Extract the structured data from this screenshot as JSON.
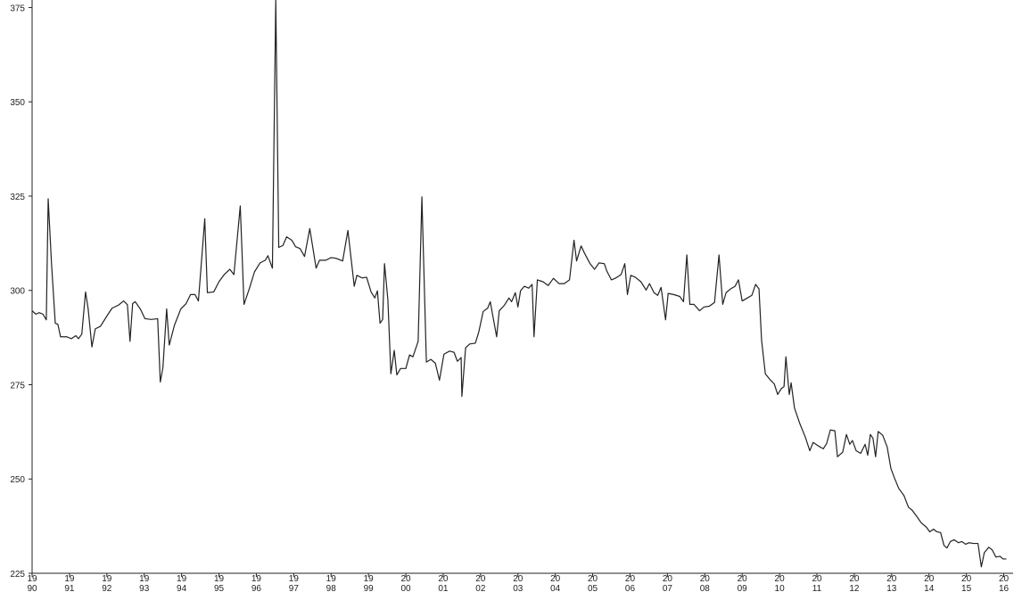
{
  "chart_data": {
    "type": "line",
    "color": "#222222",
    "grid": false,
    "xlim": [
      1990,
      2016.25
    ],
    "ylim": [
      225,
      377
    ],
    "xticks": [
      1990,
      1991,
      1992,
      1993,
      1994,
      1995,
      1996,
      1997,
      1998,
      1999,
      2000,
      2001,
      2002,
      2003,
      2004,
      2005,
      2006,
      2007,
      2008,
      2009,
      2010,
      2011,
      2012,
      2013,
      2014,
      2015,
      2016
    ],
    "yticks": [
      225,
      250,
      275,
      300,
      325,
      350,
      375
    ],
    "x": [
      1990.0,
      1990.1,
      1990.19,
      1990.29,
      1990.38,
      1990.43,
      1990.52,
      1990.62,
      1990.69,
      1990.76,
      1990.93,
      1991.05,
      1991.17,
      1991.24,
      1991.33,
      1991.43,
      1991.5,
      1991.6,
      1991.69,
      1991.83,
      1992.0,
      1992.14,
      1992.31,
      1992.45,
      1992.55,
      1992.62,
      1992.69,
      1992.76,
      1992.9,
      1993.02,
      1993.19,
      1993.36,
      1993.43,
      1993.5,
      1993.6,
      1993.67,
      1993.81,
      1993.98,
      1994.12,
      1994.24,
      1994.36,
      1994.45,
      1994.62,
      1994.69,
      1994.86,
      1995.0,
      1995.14,
      1995.29,
      1995.4,
      1995.57,
      1995.67,
      1995.81,
      1995.95,
      1996.1,
      1996.24,
      1996.31,
      1996.43,
      1996.52,
      1996.6,
      1996.71,
      1996.81,
      1996.95,
      1997.05,
      1997.17,
      1997.29,
      1997.43,
      1997.6,
      1997.69,
      1997.86,
      1998.0,
      1998.14,
      1998.31,
      1998.45,
      1998.62,
      1998.69,
      1998.83,
      1998.95,
      1999.07,
      1999.17,
      1999.24,
      1999.31,
      1999.38,
      1999.43,
      1999.52,
      1999.6,
      1999.69,
      1999.76,
      1999.86,
      2000.0,
      2000.1,
      2000.19,
      2000.33,
      2000.43,
      2000.55,
      2000.67,
      2000.79,
      2000.9,
      2001.02,
      2001.17,
      2001.29,
      2001.38,
      2001.48,
      2001.5,
      2001.6,
      2001.71,
      2001.86,
      2001.95,
      2002.07,
      2002.19,
      2002.26,
      2002.43,
      2002.5,
      2002.64,
      2002.76,
      2002.83,
      2002.93,
      2003.0,
      2003.07,
      2003.17,
      2003.29,
      2003.38,
      2003.43,
      2003.52,
      2003.67,
      2003.81,
      2003.95,
      2004.1,
      2004.24,
      2004.38,
      2004.5,
      2004.57,
      2004.69,
      2004.79,
      2004.93,
      2005.05,
      2005.17,
      2005.31,
      2005.38,
      2005.5,
      2005.62,
      2005.76,
      2005.86,
      2005.93,
      2006.02,
      2006.14,
      2006.29,
      2006.43,
      2006.52,
      2006.64,
      2006.74,
      2006.83,
      2006.95,
      2007.02,
      2007.17,
      2007.33,
      2007.43,
      2007.52,
      2007.6,
      2007.71,
      2007.86,
      2007.98,
      2008.12,
      2008.26,
      2008.38,
      2008.48,
      2008.57,
      2008.69,
      2008.81,
      2008.9,
      2009.0,
      2009.14,
      2009.26,
      2009.36,
      2009.45,
      2009.52,
      2009.62,
      2009.74,
      2009.86,
      2009.95,
      2010.05,
      2010.12,
      2010.17,
      2010.26,
      2010.31,
      2010.4,
      2010.55,
      2010.69,
      2010.81,
      2010.9,
      2011.05,
      2011.17,
      2011.26,
      2011.36,
      2011.48,
      2011.55,
      2011.69,
      2011.79,
      2011.88,
      2011.95,
      2012.05,
      2012.17,
      2012.29,
      2012.36,
      2012.43,
      2012.5,
      2012.57,
      2012.64,
      2012.76,
      2012.88,
      2012.98,
      2013.07,
      2013.19,
      2013.33,
      2013.45,
      2013.55,
      2013.67,
      2013.79,
      2013.93,
      2014.02,
      2014.12,
      2014.21,
      2014.31,
      2014.4,
      2014.48,
      2014.57,
      2014.67,
      2014.79,
      2014.88,
      2014.98,
      2015.07,
      2015.19,
      2015.31,
      2015.4,
      2015.48,
      2015.6,
      2015.69,
      2015.79,
      2015.9,
      2015.98,
      2016.07
    ],
    "values": [
      294.6,
      293.7,
      294.1,
      293.7,
      292.2,
      324.3,
      307,
      291.3,
      291,
      287.7,
      287.7,
      287.2,
      288,
      287.2,
      288.4,
      299.6,
      295.1,
      285,
      289.8,
      290.5,
      293.2,
      295.3,
      296.1,
      297.2,
      296.2,
      286.5,
      296.5,
      297,
      295,
      292.5,
      292.3,
      292.5,
      275.7,
      279.5,
      295.1,
      285.5,
      290.8,
      295.1,
      296.5,
      298.9,
      298.9,
      297.2,
      319,
      299.4,
      299.6,
      302.3,
      304.2,
      305.6,
      304.2,
      322.4,
      296.3,
      300.4,
      304.9,
      307.3,
      308,
      309.2,
      305.9,
      377,
      311.4,
      311.9,
      314.2,
      313.3,
      311.6,
      311.1,
      309,
      316.4,
      305.9,
      308,
      308,
      308.7,
      308.5,
      307.8,
      315.9,
      301.1,
      304,
      303.3,
      303.5,
      299.6,
      298,
      299.9,
      291.3,
      292.3,
      307.1,
      297.5,
      277.9,
      284.1,
      277.6,
      279.3,
      279.3,
      282.9,
      282.4,
      286.5,
      324.8,
      281,
      281.7,
      280.7,
      276.2,
      283.1,
      283.9,
      283.6,
      281.2,
      282.2,
      271.9,
      284.8,
      285.8,
      286,
      288.9,
      294.4,
      295.3,
      297,
      287.7,
      294.6,
      296.1,
      298,
      297,
      299.4,
      295.6,
      299.9,
      301.1,
      300.6,
      301.6,
      287.7,
      302.8,
      302.3,
      301.3,
      303.2,
      301.8,
      301.8,
      302.8,
      313.3,
      307.8,
      311.8,
      309.7,
      307.1,
      305.6,
      307.3,
      307.1,
      305.1,
      302.8,
      303.3,
      304.2,
      307.1,
      298.9,
      304,
      303.5,
      302.3,
      300.1,
      301.8,
      299.4,
      298.7,
      300.8,
      292.2,
      299.2,
      298.9,
      298.4,
      297,
      309.4,
      296.3,
      296.3,
      294.6,
      295.6,
      295.8,
      296.8,
      309.4,
      296.3,
      299.4,
      300.4,
      301.1,
      302.8,
      297.2,
      298,
      298.7,
      301.6,
      300.4,
      286.7,
      277.9,
      276.4,
      275.2,
      272.4,
      274,
      274.5,
      282.4,
      272.4,
      275.5,
      268.8,
      264.5,
      261.1,
      257.5,
      259.7,
      258.7,
      258,
      259.4,
      263,
      262.8,
      255.9,
      257.1,
      261.8,
      259.2,
      260.2,
      257.5,
      256.8,
      259.2,
      256.3,
      261.8,
      260.8,
      255.9,
      262.6,
      261.6,
      258.5,
      252.8,
      250.4,
      247.5,
      245.6,
      242.5,
      241.7,
      240.1,
      238.4,
      237.2,
      236,
      236.7,
      236,
      235.8,
      232.4,
      231.7,
      233.4,
      233.9,
      233.1,
      233.4,
      232.7,
      233.1,
      232.9,
      232.9,
      226.7,
      230.5,
      231.9,
      231.2,
      229.3,
      229.5,
      228.8,
      228.8
    ]
  }
}
